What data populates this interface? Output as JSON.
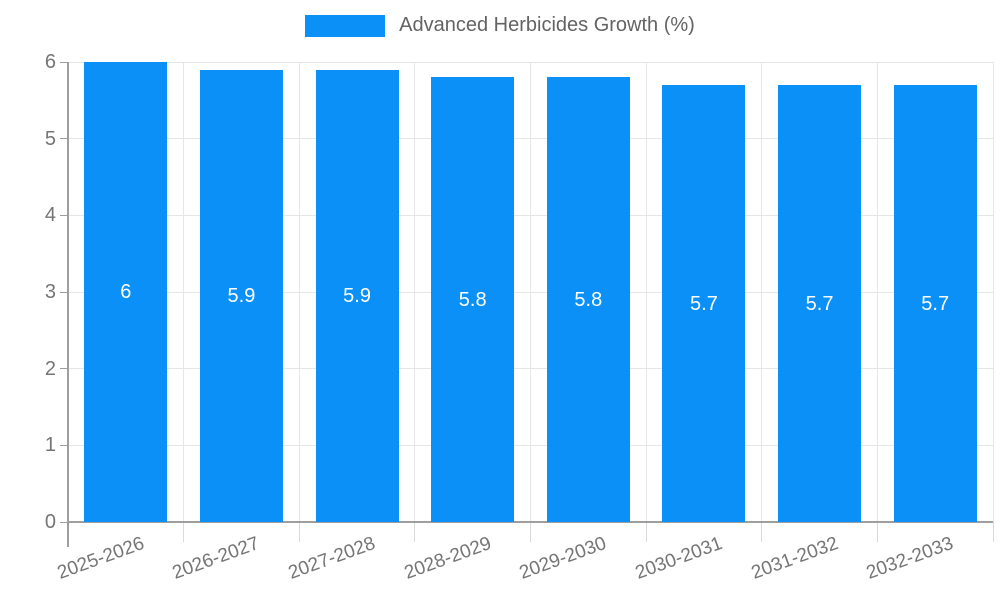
{
  "legend": {
    "label": "Advanced Herbicides Growth (%)"
  },
  "chart_data": {
    "type": "bar",
    "title": "",
    "xlabel": "",
    "ylabel": "",
    "categories": [
      "2025-2026",
      "2026-2027",
      "2027-2028",
      "2028-2029",
      "2029-2030",
      "2030-2031",
      "2031-2032",
      "2032-2033"
    ],
    "series": [
      {
        "name": "Advanced Herbicides Growth (%)",
        "values": [
          6,
          5.9,
          5.9,
          5.8,
          5.8,
          5.7,
          5.7,
          5.7
        ]
      }
    ],
    "bar_value_labels": [
      "6",
      "5.9",
      "5.9",
      "5.8",
      "5.8",
      "5.7",
      "5.7",
      "5.7"
    ],
    "ylim": [
      0,
      6
    ],
    "yticks": [
      0,
      1,
      2,
      3,
      4,
      5,
      6
    ],
    "grid": true,
    "legend_position": "top",
    "colors": {
      "bar": "#0b90f8",
      "grid": "#e6e6e6",
      "axis": "#9e9e9e",
      "boundary_tick": "#d9d9d9",
      "tick_text": "#757575",
      "legend_text": "#636363",
      "value_label": "#ffffff",
      "background": "#ffffff"
    }
  }
}
